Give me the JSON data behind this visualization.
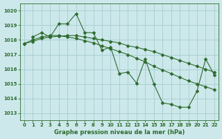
{
  "bg_color": "#cce8ea",
  "grid_color": "#aad0d4",
  "line_color": "#2d6a2d",
  "title": "Graphe pression niveau de la mer (hPa)",
  "ylim": [
    1012.5,
    1020.5
  ],
  "yticks": [
    1013,
    1014,
    1015,
    1016,
    1017,
    1018,
    1019,
    1020
  ],
  "xlim": [
    -0.5,
    22.5
  ],
  "xticks": [
    0,
    1,
    2,
    3,
    4,
    5,
    6,
    7,
    8,
    9,
    10,
    11,
    12,
    13,
    14,
    15,
    16,
    17,
    18,
    19,
    20,
    21,
    22
  ],
  "series1_x": [
    0,
    1,
    2,
    3,
    4,
    5,
    6,
    7,
    8,
    9,
    10,
    11,
    12,
    13,
    14,
    15,
    16,
    17,
    18,
    19,
    20,
    21,
    22
  ],
  "series1_y": [
    1017.75,
    1017.9,
    1018.1,
    1018.2,
    1018.25,
    1018.3,
    1018.3,
    1018.2,
    1018.1,
    1018.0,
    1017.9,
    1017.8,
    1017.6,
    1017.5,
    1017.35,
    1017.2,
    1017.0,
    1016.8,
    1016.6,
    1016.4,
    1016.2,
    1016.0,
    1015.8
  ],
  "series2_x": [
    0,
    1,
    2,
    3,
    4,
    5,
    6,
    7,
    8,
    9,
    10,
    11,
    12,
    13,
    14,
    15,
    16,
    17,
    18,
    19,
    20,
    21,
    22
  ],
  "series2_y": [
    1017.75,
    1018.0,
    1018.2,
    1018.3,
    1018.3,
    1018.2,
    1018.1,
    1017.95,
    1017.8,
    1017.6,
    1017.4,
    1017.2,
    1017.0,
    1016.75,
    1016.5,
    1016.2,
    1015.95,
    1015.7,
    1015.45,
    1015.2,
    1015.0,
    1014.8,
    1014.6
  ],
  "series3_x": [
    1,
    2,
    3,
    4,
    5,
    6,
    7,
    8,
    9,
    10,
    11,
    12,
    13,
    14,
    15,
    16,
    17,
    18,
    19,
    20,
    21,
    22
  ],
  "series3_y": [
    1018.2,
    1018.5,
    1018.2,
    1019.1,
    1019.1,
    1019.8,
    1018.5,
    1018.5,
    1017.3,
    1017.5,
    1015.7,
    1015.8,
    1015.05,
    1016.7,
    1015.0,
    1013.7,
    1013.6,
    1013.4,
    1013.4,
    1014.5,
    1016.7,
    1015.6
  ]
}
